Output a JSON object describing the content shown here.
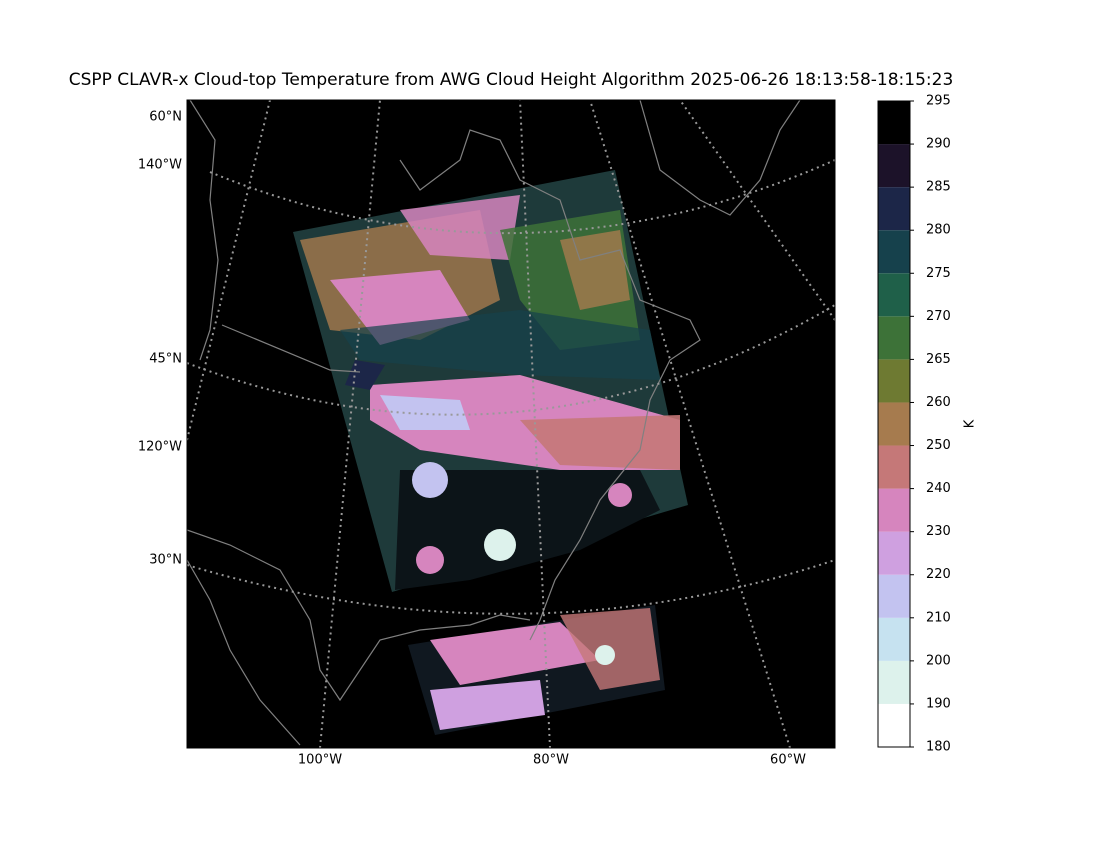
{
  "title": "CSPP CLAVR-x Cloud-top Temperature from AWG Cloud Height Algorithm 2025-06-26 18:13:58-18:15:23",
  "map": {
    "lat_labels": [
      "60°N",
      "45°N",
      "30°N"
    ],
    "lon_labels_left": [
      "140°W",
      "120°W"
    ],
    "lon_labels_bottom": [
      "100°W",
      "80°W",
      "60°W"
    ]
  },
  "colorbar": {
    "label": "K",
    "boundaries": [
      180,
      190,
      200,
      210,
      220,
      230,
      240,
      250,
      260,
      265,
      270,
      275,
      280,
      285,
      290,
      295
    ],
    "colors": [
      "#ffffff",
      "#ddf2ec",
      "#c6e2f0",
      "#c3c3f0",
      "#cfa0e0",
      "#d685be",
      "#c57878",
      "#a67b4e",
      "#6e7a32",
      "#3d7238",
      "#1f6049",
      "#16414c",
      "#1c2648",
      "#1c1229",
      "#000000"
    ]
  }
}
